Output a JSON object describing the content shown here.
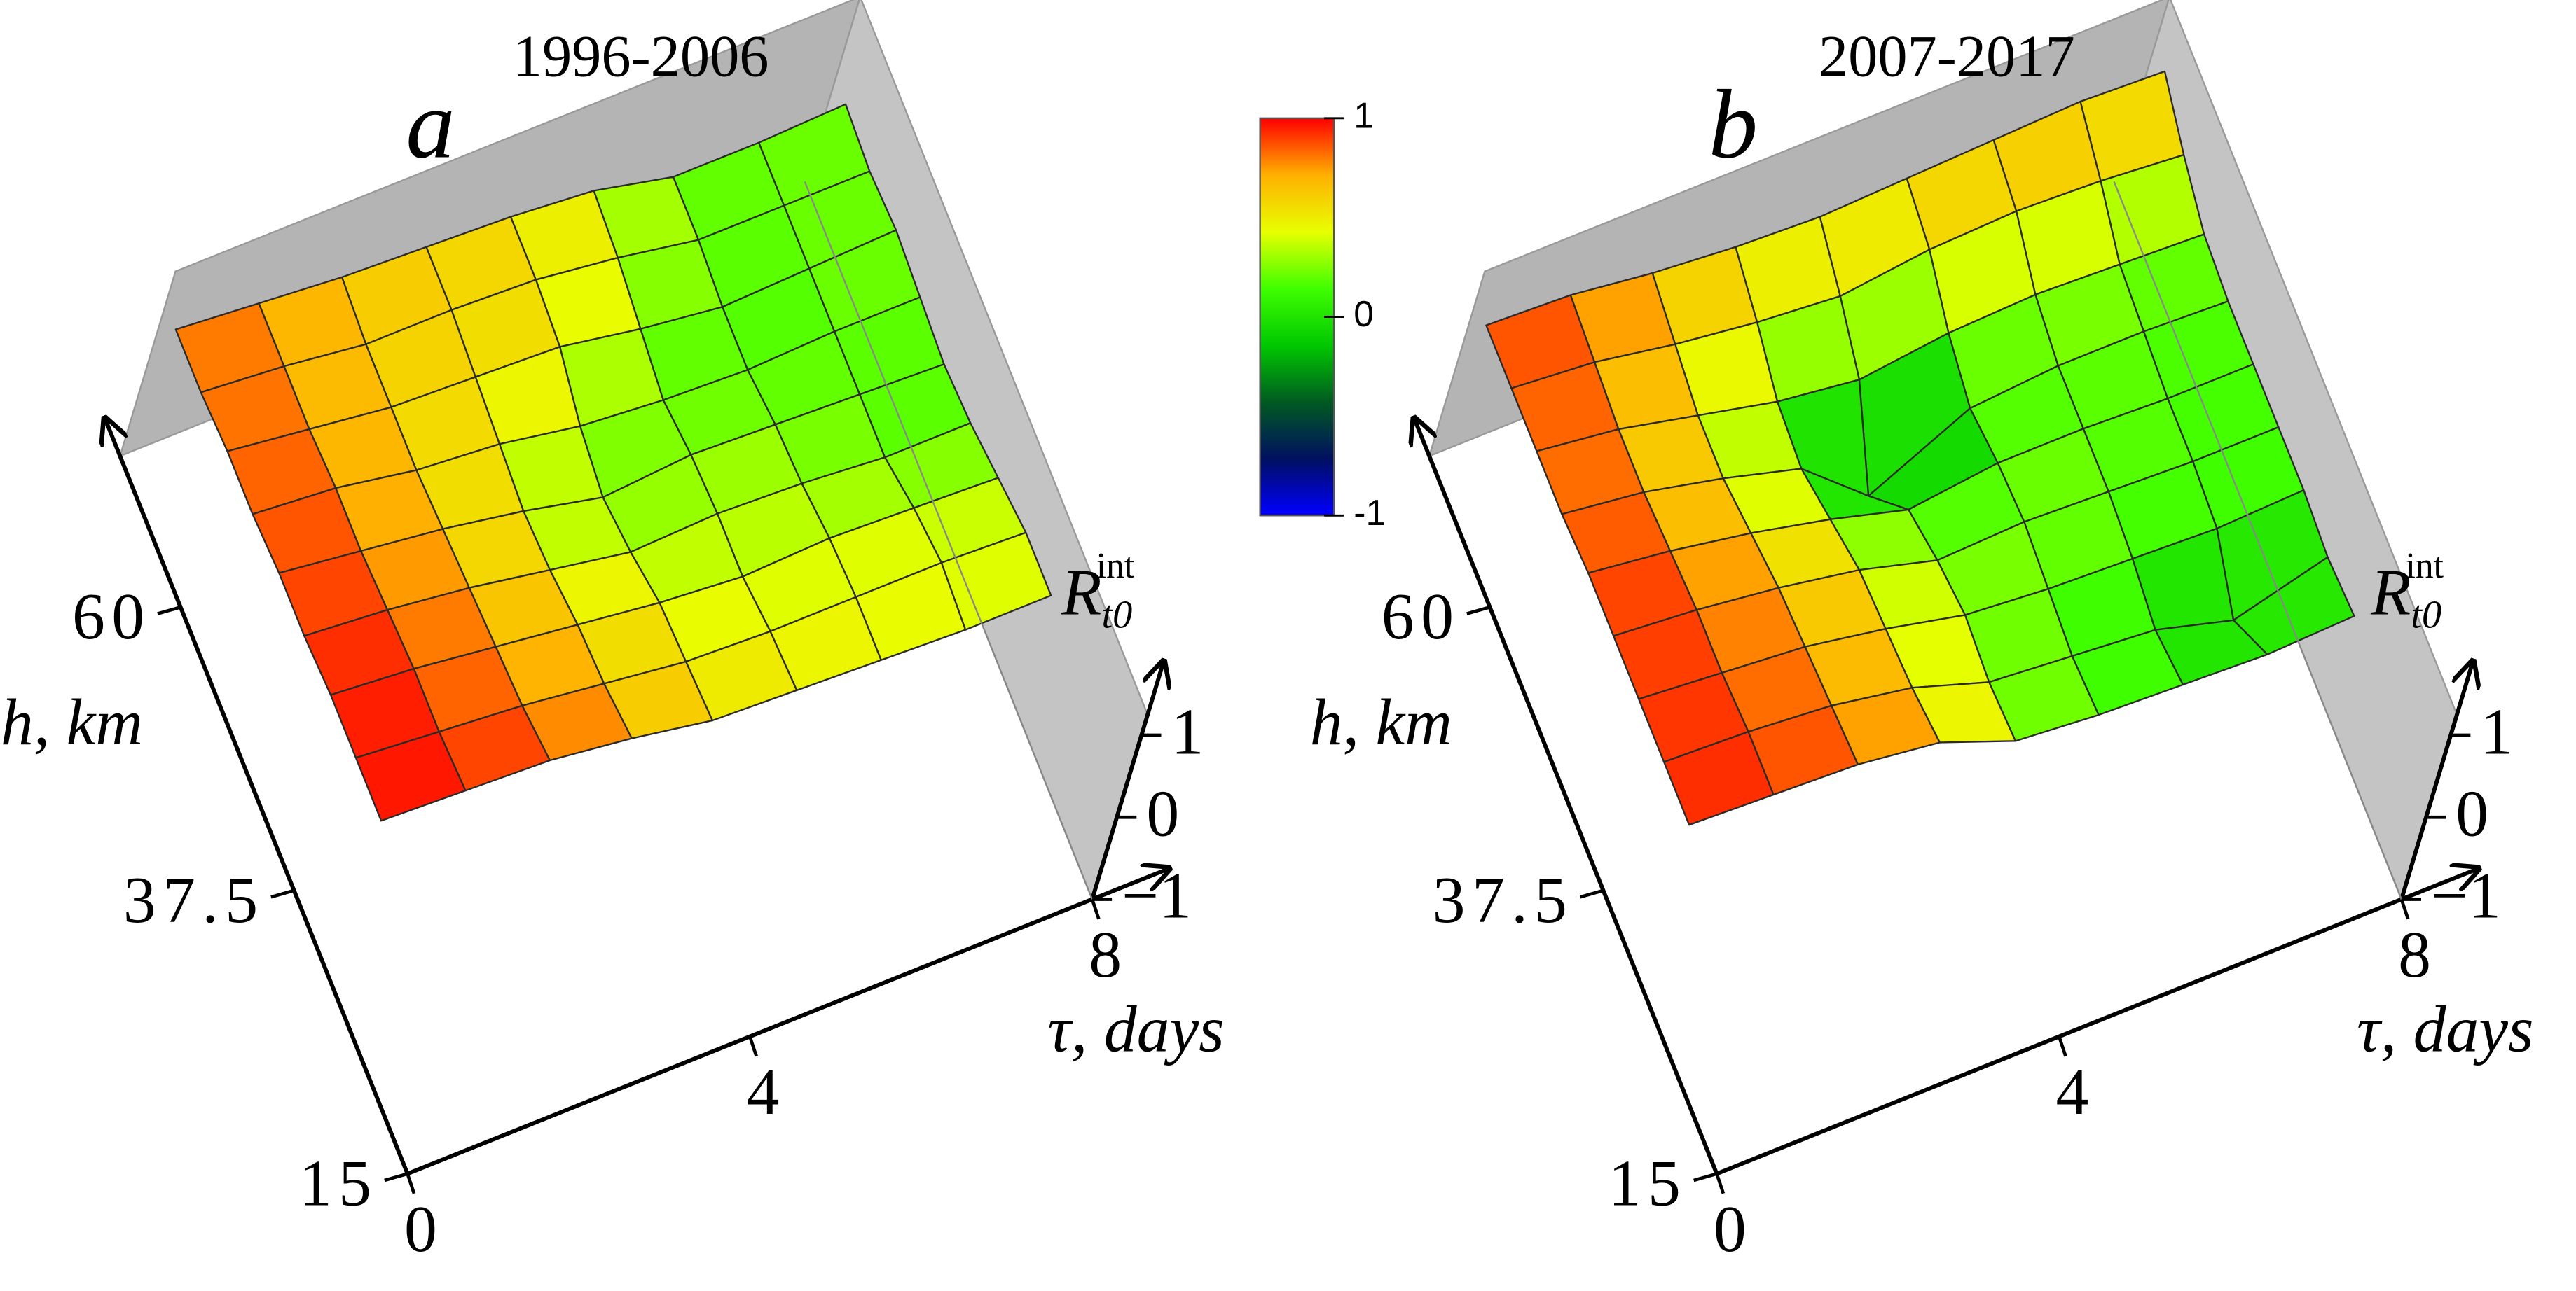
{
  "chart_data": [
    {
      "type": "surface",
      "title": "1996-2006",
      "panel": "a",
      "xlabel": "τ, days",
      "ylabel": "h, km",
      "zlabel": {
        "main": "R",
        "sub": "t0",
        "sup": "int"
      },
      "x": [
        0,
        1,
        2,
        3,
        4,
        5,
        6,
        7,
        8
      ],
      "y": [
        30,
        35,
        40,
        45,
        50,
        55,
        60,
        65,
        70
      ],
      "z": [
        [
          1.0,
          0.95,
          0.9,
          0.75,
          0.55,
          0.5,
          0.45,
          0.4,
          0.4
        ],
        [
          1.0,
          0.9,
          0.8,
          0.65,
          0.5,
          0.45,
          0.45,
          0.45,
          0.4
        ],
        [
          1.0,
          0.9,
          0.75,
          0.6,
          0.45,
          0.35,
          0.4,
          0.35,
          0.3
        ],
        [
          0.95,
          0.85,
          0.7,
          0.5,
          0.3,
          0.35,
          0.3,
          0.2,
          0.2
        ],
        [
          0.95,
          0.8,
          0.65,
          0.45,
          0.2,
          0.3,
          0.25,
          0.2,
          0.15
        ],
        [
          0.9,
          0.8,
          0.6,
          0.5,
          0.3,
          0.2,
          0.15,
          0.2,
          0.2
        ],
        [
          0.9,
          0.75,
          0.6,
          0.55,
          0.5,
          0.3,
          0.15,
          0.2,
          0.25
        ],
        [
          0.85,
          0.75,
          0.6,
          0.6,
          0.55,
          0.4,
          0.2,
          0.2,
          0.2
        ],
        [
          0.85,
          0.75,
          0.65,
          0.6,
          0.55,
          0.45,
          0.2,
          0.2,
          0.25
        ]
      ],
      "xlim": [
        0,
        8
      ],
      "xticks": [
        0,
        4,
        8
      ],
      "ylim": [
        15,
        72
      ],
      "yticks": [
        15,
        37.5,
        60
      ],
      "zlim": [
        -1,
        1
      ],
      "zticks": [
        {
          "value": -1,
          "label": "−1"
        },
        0,
        1
      ],
      "colorbar": {
        "lim": [
          -1,
          1
        ],
        "ticks": [
          1,
          0,
          -1
        ],
        "colors": [
          "#0000ff",
          "#001060",
          "#005a20",
          "#00c800",
          "#40ff00",
          "#e8ff00",
          "#ffb000",
          "#ff0000"
        ]
      }
    },
    {
      "type": "surface",
      "title": "2007-2017",
      "panel": "b",
      "xlabel": "τ, days",
      "ylabel": "h, km",
      "zlabel": {
        "main": "R",
        "sub": "t0",
        "sup": "int"
      },
      "x": [
        0,
        1,
        2,
        3,
        4,
        5,
        6,
        7,
        8
      ],
      "y": [
        30,
        35,
        40,
        45,
        50,
        55,
        60,
        65,
        70
      ],
      "z": [
        [
          0.95,
          0.9,
          0.85,
          0.7,
          0.3,
          0.2,
          0.15,
          0.1,
          0.15
        ],
        [
          0.95,
          0.9,
          0.8,
          0.6,
          0.25,
          0.15,
          0.05,
          -0.25,
          0.1
        ],
        [
          0.95,
          0.85,
          0.75,
          0.55,
          0.3,
          0.2,
          0.15,
          0.1,
          0.15
        ],
        [
          0.95,
          0.85,
          0.7,
          0.5,
          0.2,
          0.25,
          0.2,
          0.15,
          0.15
        ],
        [
          0.95,
          0.8,
          0.6,
          0.35,
          0.05,
          0.2,
          0.2,
          0.15,
          0.15
        ],
        [
          0.9,
          0.75,
          0.5,
          0.2,
          -0.55,
          0.1,
          0.2,
          0.2,
          0.15
        ],
        [
          0.9,
          0.75,
          0.5,
          0.25,
          0.1,
          0.25,
          0.3,
          0.25,
          0.2
        ],
        [
          0.9,
          0.8,
          0.6,
          0.45,
          0.35,
          0.5,
          0.55,
          0.5,
          0.4
        ],
        [
          0.9,
          0.85,
          0.7,
          0.6,
          0.55,
          0.6,
          0.65,
          0.7,
          0.65
        ]
      ],
      "xlim": [
        0,
        8
      ],
      "xticks": [
        0,
        4,
        8
      ],
      "ylim": [
        15,
        72
      ],
      "yticks": [
        15,
        37.5,
        60
      ],
      "zlim": [
        -1,
        1
      ],
      "zticks": [
        {
          "value": -1,
          "label": "−1"
        },
        0,
        1
      ]
    }
  ]
}
